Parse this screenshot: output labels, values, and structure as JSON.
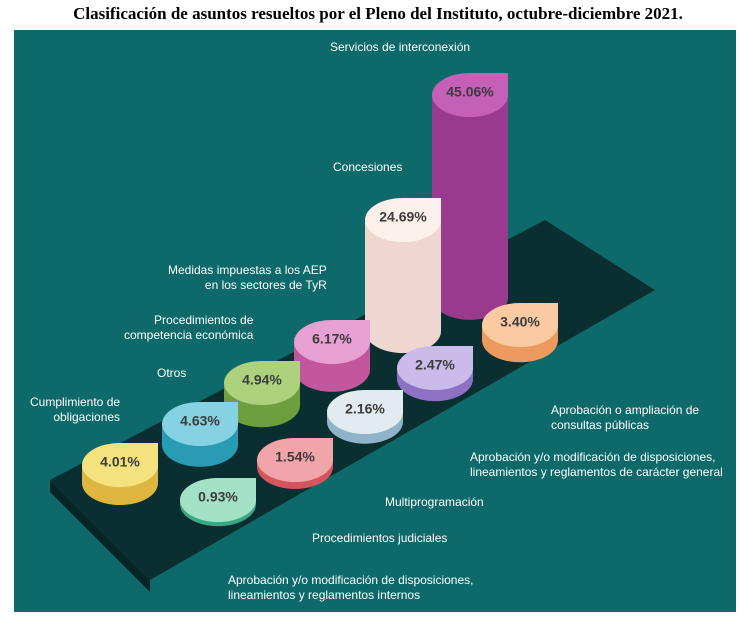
{
  "chart_data": {
    "type": "bar",
    "title": "Clasificación de asuntos resueltos por el Pleno del Instituto, octubre-diciembre 2021.",
    "categories": [
      "Servicios de interconexión",
      "Concesiones",
      "Medidas impuestas a los AEP\nen los sectores de TyR",
      "Procedimientos de\ncompetencia económica",
      "Otros",
      "Cumplimiento de\nobligaciones",
      "Aprobación y/o modificación de disposiciones,\nlineamientos y reglamentos internos",
      "Procedimientos judiciales",
      "Multiprogramación",
      "Aprobación y/o modificación de disposiciones,\nlineamientos y reglamentos de carácter general",
      "Aprobación o ampliación de\nconsultas públicas"
    ],
    "values": [
      45.06,
      24.69,
      6.17,
      4.94,
      4.63,
      4.01,
      0.93,
      1.54,
      2.16,
      2.47,
      3.4
    ],
    "value_labels": [
      "45.06%",
      "24.69%",
      "6.17%",
      "4.94%",
      "4.63%",
      "4.01%",
      "0.93%",
      "1.54%",
      "2.16%",
      "2.47%",
      "3.40%"
    ]
  }
}
